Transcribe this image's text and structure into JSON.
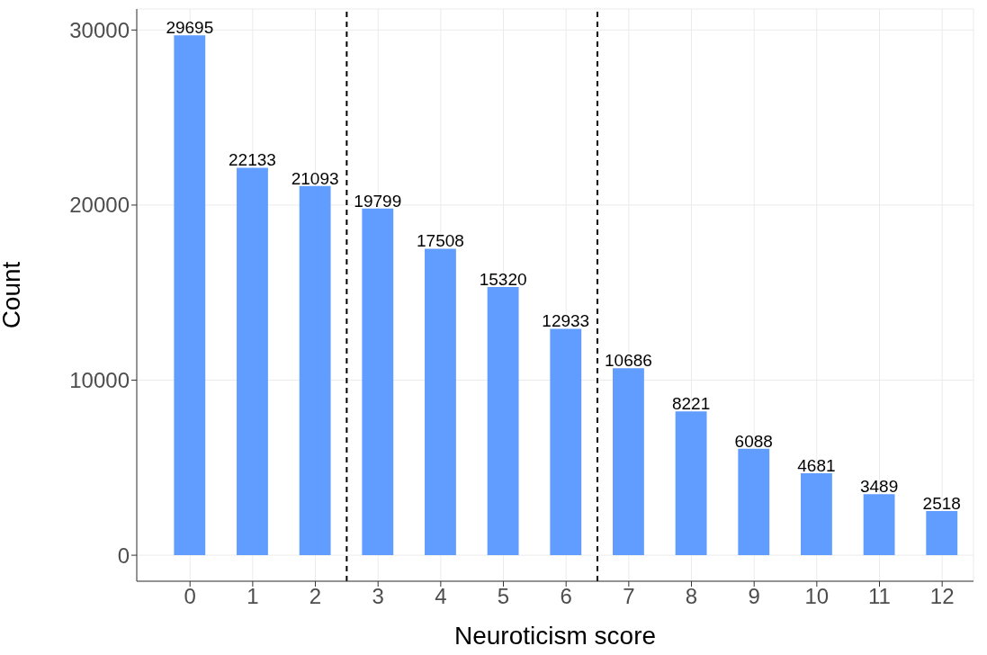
{
  "chart_data": {
    "type": "bar",
    "xlabel": "Neuroticism score",
    "ylabel": "Count",
    "x": [
      0,
      1,
      2,
      3,
      4,
      5,
      6,
      7,
      8,
      9,
      10,
      11,
      12
    ],
    "values": [
      29695,
      22133,
      21093,
      19799,
      17508,
      15320,
      12933,
      10686,
      8221,
      6088,
      4681,
      3489,
      2518
    ],
    "color": "#619cff",
    "data_labels": true,
    "xlim": [
      -0.85,
      12.5
    ],
    "xticks": [
      0,
      1,
      2,
      3,
      4,
      5,
      6,
      7,
      8,
      9,
      10,
      11,
      12
    ],
    "ylim": [
      -1485,
      31200
    ],
    "yticks": [
      0,
      10000,
      20000,
      30000
    ],
    "grid": true,
    "ref_lines": [
      {
        "axis": "x",
        "value": 2.5,
        "color": "#000000",
        "line_style": "dashed"
      },
      {
        "axis": "x",
        "value": 6.5,
        "color": "#000000",
        "line_style": "dashed"
      }
    ]
  }
}
